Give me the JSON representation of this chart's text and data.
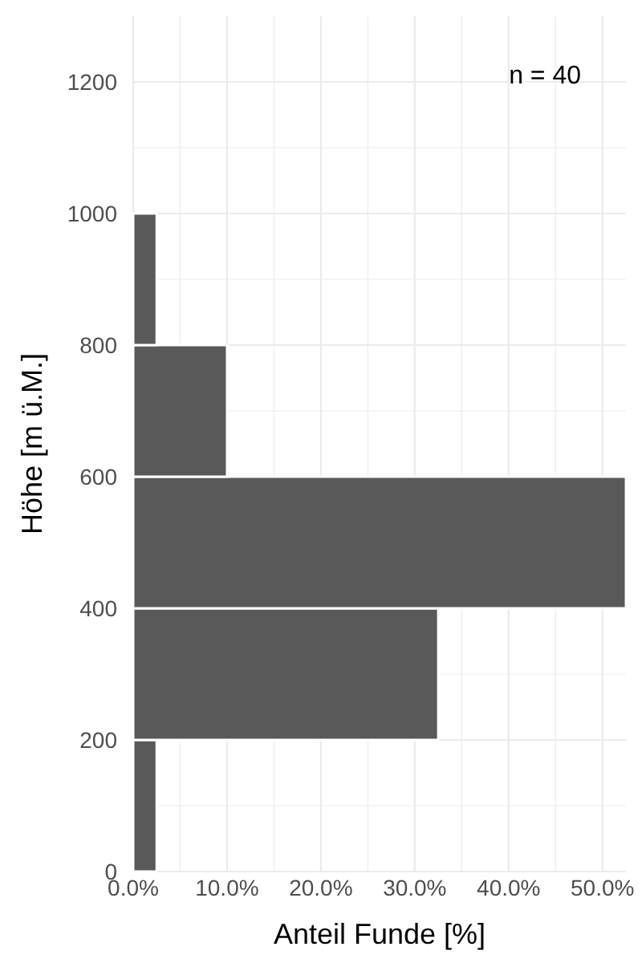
{
  "chart_data": {
    "type": "histogram",
    "orientation": "horizontal",
    "xlabel": "Anteil Funde [%]",
    "ylabel": "Höhe [m ü.M.]",
    "bins": [
      0,
      200,
      400,
      600,
      800,
      1000
    ],
    "values": [
      2.5,
      32.5,
      52.5,
      10,
      2.5
    ],
    "color": "#595959",
    "xlim": [
      0,
      52.5
    ],
    "xticks": [
      {
        "value": 0,
        "label": "0.0%"
      },
      {
        "value": 5,
        "label": null
      },
      {
        "value": 10,
        "label": "10.0%"
      },
      {
        "value": 15,
        "label": null
      },
      {
        "value": 20,
        "label": "20.0%"
      },
      {
        "value": 25,
        "label": null
      },
      {
        "value": 30,
        "label": "30.0%"
      },
      {
        "value": 35,
        "label": null
      },
      {
        "value": 40,
        "label": "40.0%"
      },
      {
        "value": 45,
        "label": null
      },
      {
        "value": 50,
        "label": "50.0%"
      }
    ],
    "ylim": [
      0,
      1300
    ],
    "yticks": [
      0,
      {
        "value": 100,
        "label": null
      },
      200,
      {
        "value": 300,
        "label": null
      },
      400,
      600,
      {
        "value": 700,
        "label": null
      },
      800,
      {
        "value": 900,
        "label": null
      },
      1000,
      {
        "value": 1100,
        "label": null
      },
      1200
    ],
    "grid": true,
    "annotations": [
      "n = 40"
    ]
  }
}
